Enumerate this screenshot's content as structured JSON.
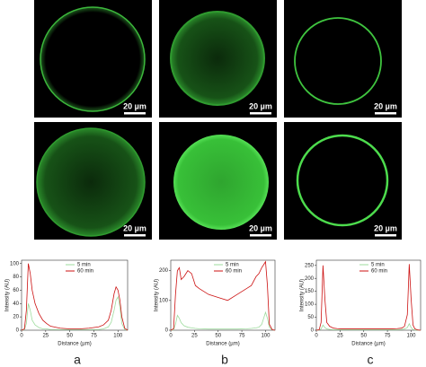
{
  "images": [
    {
      "scale_bar": "20 µm"
    },
    {
      "scale_bar": "20 µm"
    },
    {
      "scale_bar": "20 µm"
    },
    {
      "scale_bar": "20 µm"
    },
    {
      "scale_bar": "20 µm"
    },
    {
      "scale_bar": "20 µm"
    }
  ],
  "panel_labels": [
    "a",
    "b",
    "c"
  ],
  "chart_data": [
    {
      "type": "line",
      "x_label": "Distance (µm)",
      "y_label": "Intensity (AU)",
      "x": [
        0,
        3,
        5,
        7,
        9,
        11,
        14,
        18,
        22,
        26,
        30,
        40,
        50,
        60,
        70,
        80,
        85,
        90,
        93,
        96,
        98,
        100,
        102,
        104,
        107,
        110
      ],
      "xlim": [
        0,
        110
      ],
      "xticks": [
        0,
        25,
        50,
        75,
        100
      ],
      "ylim": [
        0,
        105
      ],
      "yticks": [
        0,
        20,
        40,
        60,
        80,
        100
      ],
      "grid": false,
      "series": [
        {
          "name": "5 min",
          "color": "#9edc9e",
          "values": [
            0,
            1,
            10,
            40,
            30,
            15,
            8,
            4,
            2,
            2,
            1,
            1,
            1,
            1,
            1,
            1,
            2,
            5,
            12,
            30,
            45,
            50,
            35,
            10,
            1,
            0
          ]
        },
        {
          "name": "60 min",
          "color": "#cc1111",
          "values": [
            0,
            2,
            30,
            100,
            85,
            60,
            40,
            25,
            15,
            10,
            6,
            3,
            2,
            2,
            3,
            5,
            8,
            15,
            30,
            55,
            65,
            60,
            45,
            20,
            3,
            0
          ]
        }
      ]
    },
    {
      "type": "line",
      "x_label": "Distance (µm)",
      "y_label": "Intensity (AU)",
      "x": [
        0,
        3,
        5,
        7,
        9,
        11,
        14,
        18,
        22,
        26,
        30,
        40,
        50,
        60,
        70,
        80,
        85,
        90,
        93,
        96,
        98,
        100,
        102,
        104,
        107,
        110
      ],
      "xlim": [
        0,
        110
      ],
      "xticks": [
        0,
        25,
        50,
        75,
        100
      ],
      "ylim": [
        0,
        235
      ],
      "yticks": [
        0,
        100,
        200
      ],
      "grid": false,
      "series": [
        {
          "name": "5 min",
          "color": "#9edc9e",
          "values": [
            0,
            1,
            20,
            50,
            40,
            25,
            15,
            10,
            8,
            6,
            5,
            4,
            4,
            4,
            4,
            5,
            6,
            8,
            10,
            20,
            40,
            60,
            40,
            10,
            1,
            0
          ]
        },
        {
          "name": "60 min",
          "color": "#cc1111",
          "values": [
            0,
            5,
            120,
            200,
            210,
            170,
            180,
            200,
            190,
            150,
            140,
            120,
            110,
            100,
            120,
            140,
            150,
            180,
            190,
            210,
            220,
            230,
            150,
            20,
            2,
            0
          ]
        }
      ]
    },
    {
      "type": "line",
      "x_label": "Distance (µm)",
      "y_label": "Intensity (AU)",
      "x": [
        0,
        3,
        5,
        7,
        9,
        11,
        14,
        18,
        22,
        26,
        30,
        40,
        50,
        60,
        70,
        80,
        85,
        90,
        93,
        96,
        98,
        100,
        102,
        104,
        107,
        110
      ],
      "xlim": [
        0,
        110
      ],
      "xticks": [
        0,
        25,
        50,
        75,
        100
      ],
      "ylim": [
        0,
        270
      ],
      "yticks": [
        0,
        50,
        100,
        150,
        200,
        250
      ],
      "grid": false,
      "series": [
        {
          "name": "5 min",
          "color": "#9edc9e",
          "values": [
            0,
            1,
            5,
            20,
            10,
            5,
            3,
            2,
            2,
            2,
            2,
            2,
            2,
            2,
            2,
            2,
            2,
            3,
            5,
            10,
            25,
            10,
            3,
            1,
            0,
            0
          ]
        },
        {
          "name": "60 min",
          "color": "#cc1111",
          "values": [
            0,
            2,
            30,
            250,
            120,
            30,
            15,
            8,
            6,
            5,
            5,
            5,
            5,
            5,
            5,
            5,
            6,
            8,
            15,
            60,
            255,
            120,
            20,
            5,
            1,
            0
          ]
        }
      ]
    }
  ]
}
